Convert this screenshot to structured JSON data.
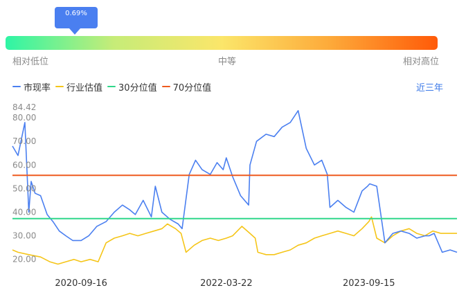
{
  "percentile": {
    "value_label": "0.69%",
    "value": 0.0069
  },
  "scale": {
    "low_label": "相对低位",
    "mid_label": "中等",
    "high_label": "相对高位"
  },
  "gradient_colors": [
    "#2ef5a5",
    "#c6ec78",
    "#fbe66a",
    "#fdaa3a",
    "#ff5a08"
  ],
  "legend": [
    {
      "label": "市现率",
      "color": "#4a7ff0"
    },
    {
      "label": "行业估值",
      "color": "#f5c518"
    },
    {
      "label": "30分位值",
      "color": "#2fd78a"
    },
    {
      "label": "70分位值",
      "color": "#ee5a1e"
    }
  ],
  "range_label": "近三年",
  "chart_data": {
    "type": "line",
    "title": "",
    "xlabel": "",
    "ylabel": "",
    "ylim": [
      15.5,
      84.42
    ],
    "y_ticks": [
      20.0,
      30.0,
      40.0,
      50.0,
      60.0,
      70.0,
      80.0,
      84.42
    ],
    "y_tick_labels": [
      "20.00",
      "30.00",
      "40.00",
      "50.00",
      "60.00",
      "70.00",
      "80.00",
      "84.42"
    ],
    "x_tick_labels": [
      "2020-09-16",
      "2022-03-22",
      "2023-09-15"
    ],
    "x_range": [
      "2019-12-30",
      "2024-08-15"
    ],
    "x_ticks": [
      "2020-09-16",
      "2022-03-22",
      "2023-09-15"
    ],
    "series": [
      {
        "name": "市现率",
        "color": "#4a7ff0",
        "x": [
          "2019-12-30",
          "2020-01-20",
          "2020-02-15",
          "2020-03-01",
          "2020-03-10",
          "2020-03-25",
          "2020-04-15",
          "2020-05-10",
          "2020-06-01",
          "2020-06-25",
          "2020-07-20",
          "2020-08-15",
          "2020-09-16",
          "2020-10-15",
          "2020-11-15",
          "2020-12-20",
          "2021-01-20",
          "2021-02-20",
          "2021-03-20",
          "2021-04-10",
          "2021-05-10",
          "2021-06-10",
          "2021-06-25",
          "2021-07-20",
          "2021-08-20",
          "2021-09-20",
          "2021-10-05",
          "2021-11-01",
          "2021-11-25",
          "2021-12-20",
          "2022-01-20",
          "2022-02-15",
          "2022-03-10",
          "2022-03-22",
          "2022-04-15",
          "2022-05-15",
          "2022-06-15",
          "2022-06-20",
          "2022-07-15",
          "2022-08-20",
          "2022-09-20",
          "2022-10-20",
          "2022-11-20",
          "2022-12-20",
          "2023-01-20",
          "2023-02-20",
          "2023-03-20",
          "2023-04-10",
          "2023-04-20",
          "2023-05-20",
          "2023-06-20",
          "2023-07-20",
          "2023-08-20",
          "2023-09-10",
          "2023-09-18",
          "2023-10-15",
          "2023-11-15",
          "2023-12-15",
          "2024-01-15",
          "2024-02-15",
          "2024-03-15",
          "2024-04-15",
          "2024-05-01",
          "2024-05-20",
          "2024-06-20",
          "2024-07-20",
          "2024-08-15"
        ],
        "y": [
          68,
          64,
          78,
          40,
          53,
          48,
          47,
          39,
          36,
          32,
          30,
          28,
          28,
          30,
          34,
          36,
          40,
          43,
          41,
          39,
          45,
          38,
          51,
          40,
          37,
          35,
          33,
          56,
          62,
          58,
          56,
          61,
          58,
          63,
          55,
          47,
          43,
          60,
          70,
          73,
          72,
          76,
          78,
          83,
          67,
          60,
          62,
          56,
          42,
          45,
          42,
          40,
          49,
          51,
          52,
          51,
          27,
          31,
          32,
          31,
          29,
          30,
          30,
          31,
          23,
          24,
          23
        ]
      },
      {
        "name": "行业估值",
        "color": "#f5c518",
        "x": [
          "2019-12-30",
          "2020-01-20",
          "2020-03-01",
          "2020-04-15",
          "2020-05-20",
          "2020-06-20",
          "2020-07-20",
          "2020-08-20",
          "2020-09-16",
          "2020-10-20",
          "2020-11-20",
          "2020-12-20",
          "2021-01-20",
          "2021-02-20",
          "2021-03-20",
          "2021-04-20",
          "2021-05-20",
          "2021-06-20",
          "2021-07-20",
          "2021-08-10",
          "2021-09-10",
          "2021-10-01",
          "2021-10-20",
          "2021-11-20",
          "2021-12-20",
          "2022-01-20",
          "2022-02-20",
          "2022-03-22",
          "2022-04-15",
          "2022-05-20",
          "2022-06-20",
          "2022-07-10",
          "2022-07-20",
          "2022-08-20",
          "2022-09-20",
          "2022-10-20",
          "2022-11-20",
          "2022-12-20",
          "2023-01-20",
          "2023-02-20",
          "2023-03-20",
          "2023-04-20",
          "2023-05-20",
          "2023-06-20",
          "2023-07-20",
          "2023-08-20",
          "2023-09-15",
          "2023-09-25",
          "2023-10-15",
          "2023-11-15",
          "2023-12-15",
          "2024-01-15",
          "2024-02-15",
          "2024-03-15",
          "2024-04-15",
          "2024-05-15",
          "2024-06-15",
          "2024-07-15",
          "2024-08-15"
        ],
        "y": [
          24,
          23,
          22,
          21,
          19,
          18,
          19,
          20,
          19,
          20,
          19,
          27,
          29,
          30,
          31,
          30,
          31,
          32,
          33,
          35,
          33,
          31,
          23,
          26,
          28,
          29,
          28,
          29,
          30,
          34,
          31,
          29,
          23,
          22,
          22,
          23,
          24,
          26,
          27,
          29,
          30,
          31,
          32,
          31,
          30,
          33,
          36,
          38,
          29,
          27,
          30,
          32,
          33,
          31,
          30,
          32,
          31,
          31,
          31
        ]
      },
      {
        "name": "30分位值",
        "color": "#2fd78a",
        "x": [
          "2019-12-30",
          "2024-08-15"
        ],
        "y": [
          37.3,
          37.3
        ]
      },
      {
        "name": "70分位值",
        "color": "#ee5a1e",
        "x": [
          "2019-12-30",
          "2024-08-15"
        ],
        "y": [
          55.6,
          55.6
        ]
      }
    ]
  }
}
